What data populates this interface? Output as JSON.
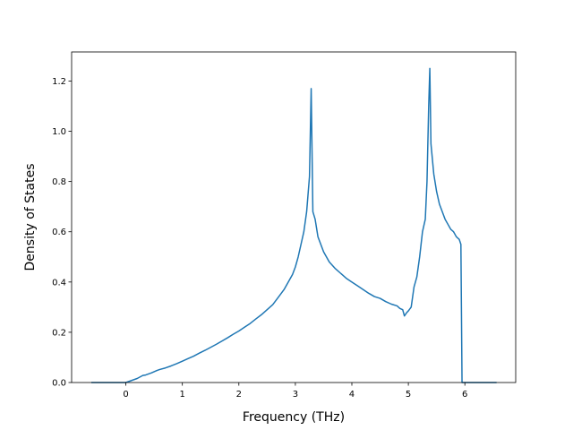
{
  "chart_data": {
    "type": "line",
    "title": "",
    "xlabel": "Frequency (THz)",
    "ylabel": "Density of States",
    "xlim": [
      -0.96,
      6.9
    ],
    "ylim": [
      0.0,
      1.3157
    ],
    "grid": false,
    "legend": "none",
    "x_ticks": [
      0,
      1,
      2,
      3,
      4,
      5,
      6
    ],
    "x_tick_labels": [
      "0",
      "1",
      "2",
      "3",
      "4",
      "5",
      "6"
    ],
    "y_ticks": [
      0.0,
      0.2,
      0.4,
      0.6,
      0.8,
      1.0,
      1.2
    ],
    "y_tick_labels": [
      "0.0",
      "0.2",
      "0.4",
      "0.6",
      "0.8",
      "1.0",
      "1.2"
    ],
    "series": [
      {
        "color": "#1f77b4",
        "x": [
          -0.6,
          -0.3,
          0.0,
          0.1,
          0.2,
          0.3,
          0.35,
          0.45,
          0.55,
          0.6,
          0.7,
          0.8,
          0.9,
          1.0,
          1.1,
          1.2,
          1.3,
          1.4,
          1.5,
          1.6,
          1.7,
          1.8,
          1.9,
          2.0,
          2.1,
          2.2,
          2.3,
          2.4,
          2.5,
          2.6,
          2.7,
          2.8,
          2.9,
          2.95,
          3.0,
          3.05,
          3.1,
          3.15,
          3.2,
          3.25,
          3.28,
          3.31,
          3.35,
          3.4,
          3.45,
          3.5,
          3.6,
          3.7,
          3.8,
          3.9,
          4.0,
          4.1,
          4.2,
          4.3,
          4.4,
          4.5,
          4.6,
          4.7,
          4.8,
          4.85,
          4.9,
          4.93,
          4.97,
          5.0,
          5.05,
          5.1,
          5.15,
          5.2,
          5.25,
          5.3,
          5.33,
          5.36,
          5.38,
          5.4,
          5.45,
          5.5,
          5.55,
          5.6,
          5.65,
          5.7,
          5.75,
          5.8,
          5.85,
          5.9,
          5.93,
          5.95,
          6.0,
          6.3,
          6.55
        ],
        "y": [
          0.0,
          0.0,
          0.0,
          0.008,
          0.016,
          0.028,
          0.03,
          0.038,
          0.048,
          0.052,
          0.058,
          0.066,
          0.075,
          0.085,
          0.095,
          0.105,
          0.117,
          0.128,
          0.14,
          0.152,
          0.165,
          0.178,
          0.192,
          0.205,
          0.22,
          0.235,
          0.253,
          0.27,
          0.29,
          0.31,
          0.34,
          0.37,
          0.41,
          0.43,
          0.46,
          0.5,
          0.55,
          0.6,
          0.68,
          0.82,
          1.17,
          0.68,
          0.65,
          0.58,
          0.55,
          0.52,
          0.48,
          0.455,
          0.435,
          0.415,
          0.4,
          0.385,
          0.37,
          0.355,
          0.342,
          0.335,
          0.322,
          0.312,
          0.305,
          0.295,
          0.29,
          0.265,
          0.278,
          0.285,
          0.3,
          0.38,
          0.42,
          0.5,
          0.6,
          0.65,
          0.8,
          1.1,
          1.25,
          0.95,
          0.83,
          0.76,
          0.71,
          0.68,
          0.65,
          0.63,
          0.61,
          0.6,
          0.58,
          0.57,
          0.55,
          0.0,
          0.0,
          0.0,
          0.0
        ]
      }
    ]
  }
}
